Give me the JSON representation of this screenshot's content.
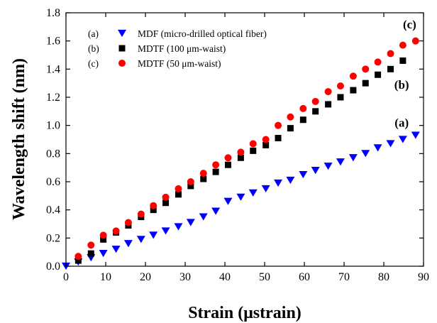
{
  "chart_data": {
    "type": "scatter",
    "xlabel": "Strain (μstrain)",
    "ylabel": "Wavelength shift (nm)",
    "xlim": [
      0,
      90
    ],
    "ylim": [
      0,
      1.8
    ],
    "xticks": [
      0,
      10,
      20,
      30,
      40,
      50,
      60,
      70,
      80,
      90
    ],
    "yticks": [
      0.0,
      0.2,
      0.4,
      0.6,
      0.8,
      1.0,
      1.2,
      1.4,
      1.6,
      1.8
    ],
    "ytick_labels": [
      "0.0",
      "0.2",
      "0.4",
      "0.6",
      "0.8",
      "1.0",
      "1.2",
      "1.4",
      "1.6",
      "1.8"
    ],
    "grid": false,
    "legend_position": "top-left",
    "series": [
      {
        "key": "(a)",
        "name": "MDF (micro-drilled optical fiber)",
        "marker": "triangle-down",
        "color": "#0000ff",
        "x": [
          0,
          3.1,
          6.3,
          9.4,
          12.6,
          15.7,
          18.9,
          22,
          25.1,
          28.3,
          31.4,
          34.6,
          37.7,
          40.8,
          44,
          47.1,
          50.3,
          53.4,
          56.5,
          59.7,
          62.8,
          66,
          69.1,
          72.3,
          75.4,
          78.5,
          81.7,
          84.8,
          88
        ],
        "y": [
          0.0,
          0.03,
          0.06,
          0.09,
          0.12,
          0.16,
          0.19,
          0.22,
          0.25,
          0.28,
          0.31,
          0.35,
          0.39,
          0.46,
          0.49,
          0.52,
          0.55,
          0.59,
          0.61,
          0.65,
          0.68,
          0.71,
          0.74,
          0.77,
          0.8,
          0.84,
          0.87,
          0.9,
          0.93
        ]
      },
      {
        "key": "(b)",
        "name": "MDTF (100 μm-waist)",
        "marker": "square",
        "color": "#000000",
        "x": [
          3.1,
          6.3,
          9.4,
          12.6,
          15.7,
          18.9,
          22,
          25.1,
          28.3,
          31.4,
          34.6,
          37.7,
          40.8,
          44,
          47.1,
          50.3,
          53.4,
          56.5,
          59.7,
          62.8,
          66,
          69.1,
          72.3,
          75.4,
          78.5,
          81.7,
          84.8
        ],
        "y": [
          0.04,
          0.09,
          0.19,
          0.24,
          0.29,
          0.35,
          0.4,
          0.45,
          0.51,
          0.57,
          0.62,
          0.67,
          0.72,
          0.77,
          0.82,
          0.86,
          0.91,
          0.98,
          1.04,
          1.1,
          1.15,
          1.2,
          1.25,
          1.3,
          1.36,
          1.4,
          1.46
        ]
      },
      {
        "key": "(c)",
        "name": "MDTF (50 μm-waist)",
        "marker": "circle",
        "color": "#ff0000",
        "x": [
          3.1,
          6.3,
          9.4,
          12.6,
          15.7,
          18.9,
          22,
          25.1,
          28.3,
          31.4,
          34.6,
          37.7,
          40.8,
          44,
          47.1,
          50.3,
          53.4,
          56.5,
          59.7,
          62.8,
          66,
          69.1,
          72.3,
          75.4,
          78.5,
          81.7,
          84.8,
          88
        ],
        "y": [
          0.07,
          0.15,
          0.22,
          0.25,
          0.31,
          0.37,
          0.43,
          0.49,
          0.55,
          0.6,
          0.66,
          0.72,
          0.77,
          0.81,
          0.87,
          0.9,
          1.0,
          1.06,
          1.12,
          1.17,
          1.24,
          1.28,
          1.35,
          1.4,
          1.45,
          1.51,
          1.57,
          1.6
        ]
      }
    ],
    "annotations": [
      {
        "text": "(c)",
        "x": 86.5,
        "y": 1.69
      },
      {
        "text": "(b)",
        "x": 84.5,
        "y": 1.26
      },
      {
        "text": "(a)",
        "x": 84.5,
        "y": 0.99
      }
    ]
  }
}
